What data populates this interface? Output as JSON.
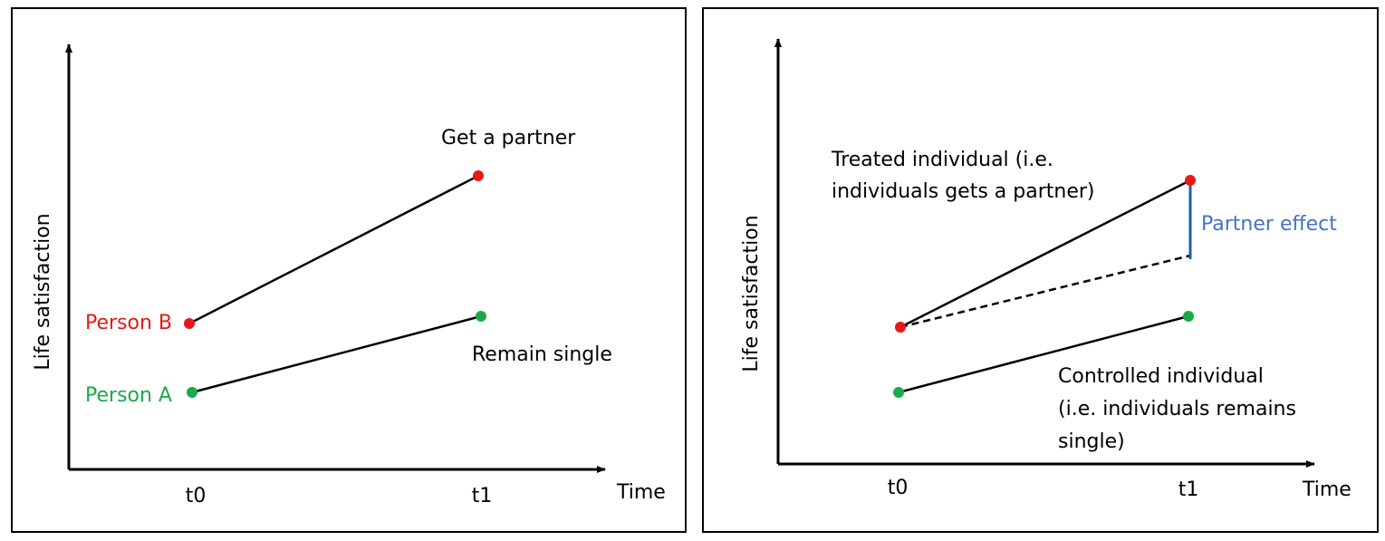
{
  "colors": {
    "red": "#e81818",
    "green": "#1aaa4a",
    "blue_text": "#4472c4",
    "blue_line": "#1f5fa8",
    "black": "#000000"
  },
  "left_panel": {
    "y_axis_label": "Life satisfaction",
    "x_axis_label": "Time",
    "ticks": [
      "t0",
      "t1"
    ],
    "person_b": "Person B",
    "person_a": "Person A",
    "outcome_b": "Get a partner",
    "outcome_a": "Remain single"
  },
  "right_panel": {
    "y_axis_label": "Life satisfaction",
    "x_axis_label": "Time",
    "ticks": [
      "t0",
      "t1"
    ],
    "treated_line1": "Treated individual (i.e.",
    "treated_line2": "individuals gets a partner)",
    "effect_label": "Partner effect",
    "control_line1": "Controlled individual",
    "control_line2": "(i.e. individuals remains",
    "control_line3": "single)"
  }
}
